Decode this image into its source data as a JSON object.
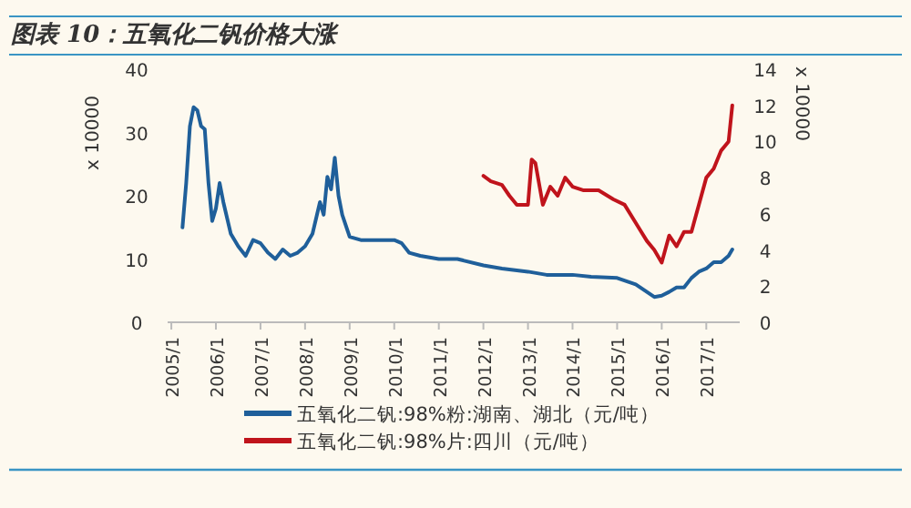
{
  "chart_data": {
    "type": "line",
    "title": "图表 10：五氧化二钒价格大涨",
    "ylabel": "x 10000",
    "y2label": "x 10000",
    "xlim": [
      "2004-12",
      "2017-10"
    ],
    "xticks": [
      {
        "value": "2005-01",
        "label": "2005/1"
      },
      {
        "value": "2006-01",
        "label": "2006/1"
      },
      {
        "value": "2007-01",
        "label": "2007/1"
      },
      {
        "value": "2008-01",
        "label": "2008/1"
      },
      {
        "value": "2009-01",
        "label": "2009/1"
      },
      {
        "value": "2010-01",
        "label": "2010/1"
      },
      {
        "value": "2011-01",
        "label": "2011/1"
      },
      {
        "value": "2012-01",
        "label": "2012/1"
      },
      {
        "value": "2013-01",
        "label": "2013/1"
      },
      {
        "value": "2014-01",
        "label": "2014/1"
      },
      {
        "value": "2015-01",
        "label": "2015/1"
      },
      {
        "value": "2016-01",
        "label": "2016/1"
      },
      {
        "value": "2017-01",
        "label": "2017/1"
      }
    ],
    "ylim": [
      0,
      40
    ],
    "yticks": [
      0,
      10,
      20,
      30,
      40
    ],
    "y2lim": [
      0,
      14
    ],
    "y2ticks": [
      0,
      2,
      4,
      6,
      8,
      10,
      12,
      14
    ],
    "legend": "bottom",
    "grid": false,
    "marker": "none",
    "series": [
      {
        "name": "五氧化二钒:98%粉:湖南、湖北（元/吨）",
        "color": "#1f5f9a",
        "x": [
          "2005-04",
          "2005-05",
          "2005-06",
          "2005-07",
          "2005-08",
          "2005-09",
          "2005-10",
          "2005-11",
          "2005-12",
          "2006-01",
          "2006-02",
          "2006-03",
          "2006-05",
          "2006-07",
          "2006-09",
          "2006-11",
          "2007-01",
          "2007-03",
          "2007-05",
          "2007-07",
          "2007-09",
          "2007-11",
          "2008-01",
          "2008-03",
          "2008-05",
          "2008-06",
          "2008-07",
          "2008-08",
          "2008-09",
          "2008-10",
          "2008-11",
          "2009-01",
          "2009-04",
          "2009-07",
          "2009-10",
          "2010-01",
          "2010-03",
          "2010-05",
          "2010-08",
          "2011-01",
          "2011-06",
          "2012-01",
          "2012-06",
          "2013-01",
          "2013-06",
          "2014-01",
          "2014-06",
          "2015-01",
          "2015-06",
          "2015-11",
          "2016-01",
          "2016-03",
          "2016-05",
          "2016-07",
          "2016-09",
          "2016-11",
          "2017-01",
          "2017-03",
          "2017-05",
          "2017-07",
          "2017-08"
        ],
        "values": [
          15,
          22,
          31,
          34,
          33.5,
          31,
          30.5,
          22,
          16,
          18,
          22,
          19,
          14,
          12,
          10.5,
          13,
          12.5,
          11,
          10,
          11.5,
          10.5,
          11,
          12,
          14,
          19,
          17,
          23,
          21,
          26,
          20,
          17,
          13.5,
          13,
          13,
          13,
          13,
          12.5,
          11,
          10.5,
          10,
          10,
          9,
          8.5,
          8,
          7.5,
          7.5,
          7.2,
          7,
          6,
          4,
          4.2,
          4.8,
          5.5,
          5.5,
          7,
          8,
          8.5,
          9.5,
          9.5,
          10.5,
          11.5
        ]
      },
      {
        "name": "五氧化二钒:98%片:四川（元/吨）",
        "color": "#c0141c",
        "axis": "y2",
        "x": [
          "2012-01",
          "2012-03",
          "2012-06",
          "2012-08",
          "2012-10",
          "2013-01",
          "2013-02",
          "2013-03",
          "2013-05",
          "2013-07",
          "2013-09",
          "2013-11",
          "2014-01",
          "2014-04",
          "2014-08",
          "2014-12",
          "2015-03",
          "2015-06",
          "2015-09",
          "2015-11",
          "2016-01",
          "2016-03",
          "2016-05",
          "2016-07",
          "2016-09",
          "2016-11",
          "2017-01",
          "2017-03",
          "2017-05",
          "2017-07",
          "2017-08"
        ],
        "values": [
          8.1,
          7.8,
          7.6,
          7,
          6.5,
          6.5,
          9,
          8.8,
          6.5,
          7.5,
          7,
          8,
          7.5,
          7.3,
          7.3,
          6.8,
          6.5,
          5.5,
          4.5,
          4,
          3.3,
          4.8,
          4.2,
          5,
          5,
          6.5,
          8,
          8.5,
          9.5,
          10,
          12
        ]
      }
    ]
  }
}
